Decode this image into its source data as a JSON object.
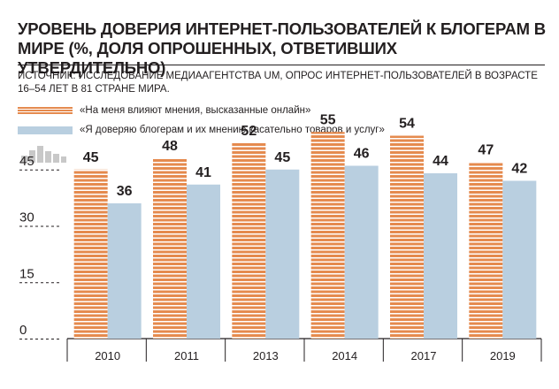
{
  "title": "УРОВЕНЬ ДОВЕРИЯ ИНТЕРНЕТ-ПОЛЬЗОВАТЕЛЕЙ К БЛОГЕРАМ В МИРЕ (%, ДОЛЯ ОПРОШЕННЫХ, ОТВЕТИВШИХ УТВЕРДИТЕЛЬНО)",
  "source": "ИСТОЧНИК: ИССЛЕДОВАНИЕ МЕДИААГЕНТСТВА UM, ОПРОС ИНТЕРНЕТ-ПОЛЬЗОВАТЕЛЕЙ В ВОЗРАСТЕ 16–54 ЛЕТ В 81 СТРАНЕ МИРА.",
  "colors": {
    "series1": "#e58a4e",
    "series2": "#b9cfe0",
    "text": "#231f20",
    "icon": "#c8c8c8"
  },
  "chart_data": {
    "type": "bar",
    "categories": [
      "2010",
      "2011",
      "2013",
      "2014",
      "2017",
      "2019"
    ],
    "series": [
      {
        "name": "«На меня влияют мнения, высказанные онлайн»",
        "values": [
          45,
          48,
          52,
          55,
          54,
          47
        ]
      },
      {
        "name": "«Я доверяю блогерам и их мнению касательно товаров и услуг»",
        "values": [
          36,
          41,
          45,
          46,
          44,
          42
        ]
      }
    ],
    "yticks": [
      "0",
      "15",
      "30",
      "45"
    ],
    "ylim": [
      0,
      60
    ],
    "legend": "top",
    "grid": false
  }
}
